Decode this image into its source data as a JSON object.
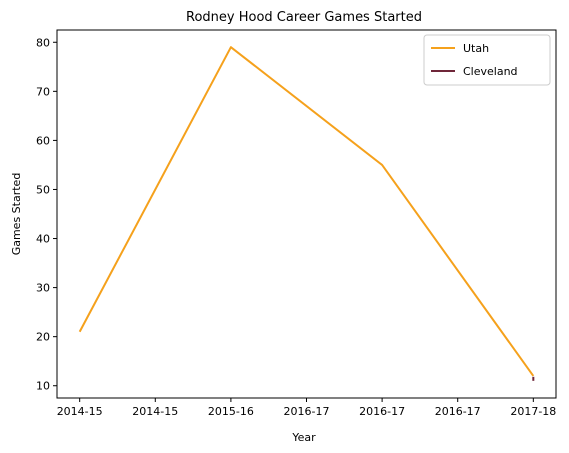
{
  "chart_data": {
    "type": "line",
    "title": "Rodney Hood Career Games Started",
    "xlabel": "Year",
    "ylabel": "Games Started",
    "x_ticks": [
      "2014-15",
      "2014-15",
      "2015-16",
      "2016-17",
      "2016-17",
      "2016-17",
      "2017-18"
    ],
    "xlim": [
      -0.15,
      3.15
    ],
    "ylim": [
      7.5,
      82.5
    ],
    "y_ticks": [
      10,
      20,
      30,
      40,
      50,
      60,
      70,
      80
    ],
    "grid": false,
    "legend_position": "top-right",
    "series": [
      {
        "name": "Utah",
        "color": "#f5a11c",
        "x": [
          0,
          1,
          2,
          3
        ],
        "x_labels": [
          "2014-15",
          "2015-16",
          "2016-17",
          "2017-18"
        ],
        "y": [
          21,
          79,
          55,
          12
        ]
      },
      {
        "name": "Cleveland",
        "color": "#6f2639",
        "x": [
          3
        ],
        "x_labels": [
          "2017-18"
        ],
        "y": [
          11
        ]
      }
    ]
  }
}
